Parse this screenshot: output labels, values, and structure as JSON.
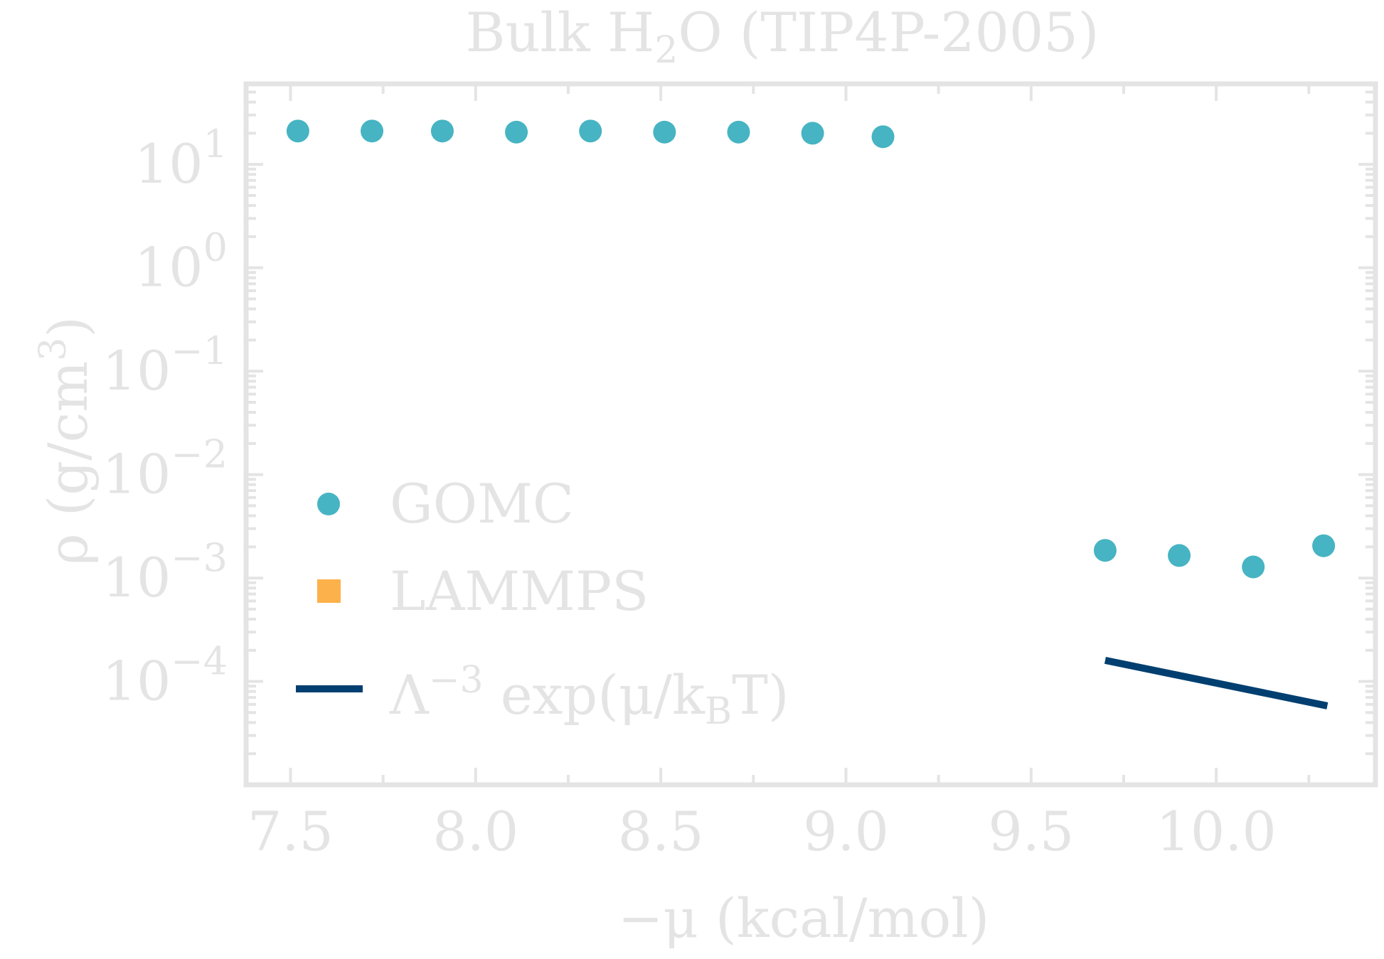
{
  "chart_data": {
    "type": "scatter",
    "title": "Bulk H₂O (TIP4P-2005)",
    "title_parts": {
      "prefix": "Bulk H",
      "sub": "2",
      "suffix": "O (TIP4P-2005)"
    },
    "xlabel": "−μ (kcal/mol)",
    "ylabel": "ρ (g/cm³)",
    "ylabel_parts": {
      "base": "ρ (g/cm",
      "sup": "3",
      "close": ")"
    },
    "x_scale": "linear",
    "y_scale": "log",
    "xlim": [
      7.38,
      10.43
    ],
    "ylim": [
      1e-05,
      60
    ],
    "x_ticks": [
      7.5,
      8.0,
      8.5,
      9.0,
      9.5,
      10.0
    ],
    "x_tick_labels": [
      "7.5",
      "8.0",
      "8.5",
      "9.0",
      "9.5",
      "10.0"
    ],
    "y_ticks": [
      10,
      1,
      0.1,
      0.01,
      0.001,
      0.0001
    ],
    "y_tick_labels": [
      {
        "base": "10",
        "exp": "1"
      },
      {
        "base": "10",
        "exp": "0"
      },
      {
        "base": "10",
        "exp": "−1"
      },
      {
        "base": "10",
        "exp": "−2"
      },
      {
        "base": "10",
        "exp": "−3"
      },
      {
        "base": "10",
        "exp": "−4"
      }
    ],
    "grid": false,
    "legend_position": "center-left",
    "legend": [
      {
        "label": "GOMC",
        "marker": "circle",
        "color": "#46b4c2"
      },
      {
        "label": "LAMMPS",
        "marker": "square",
        "color": "#fdb14a"
      },
      {
        "label_parts": {
          "a": "Λ",
          "sup": "−3",
          "b": " exp(μ/k",
          "sub": "B",
          "c": "T)"
        },
        "marker": "line",
        "color": "#003f70"
      }
    ],
    "series": [
      {
        "name": "GOMC",
        "color": "#46b4c2",
        "x": [
          7.52,
          7.72,
          7.91,
          8.11,
          8.31,
          8.51,
          8.71,
          8.91,
          9.1,
          9.7,
          9.9,
          10.1,
          10.29
        ],
        "y": [
          21.0,
          21.0,
          21.0,
          20.5,
          21.0,
          20.5,
          20.5,
          20.0,
          18.5,
          0.00185,
          0.00165,
          0.00128,
          0.00205
        ]
      },
      {
        "name": "Λ^-3 exp(μ/kBT)",
        "color": "#003f70",
        "type": "line",
        "x": [
          9.7,
          10.3
        ],
        "y": [
          0.00016,
          5.8e-05
        ]
      }
    ]
  },
  "colors": {
    "axis": "#e4e4e4",
    "text": "#e4e4e4",
    "gomc": "#46b4c2",
    "lammps": "#fdb14a",
    "ideal": "#003f70"
  }
}
